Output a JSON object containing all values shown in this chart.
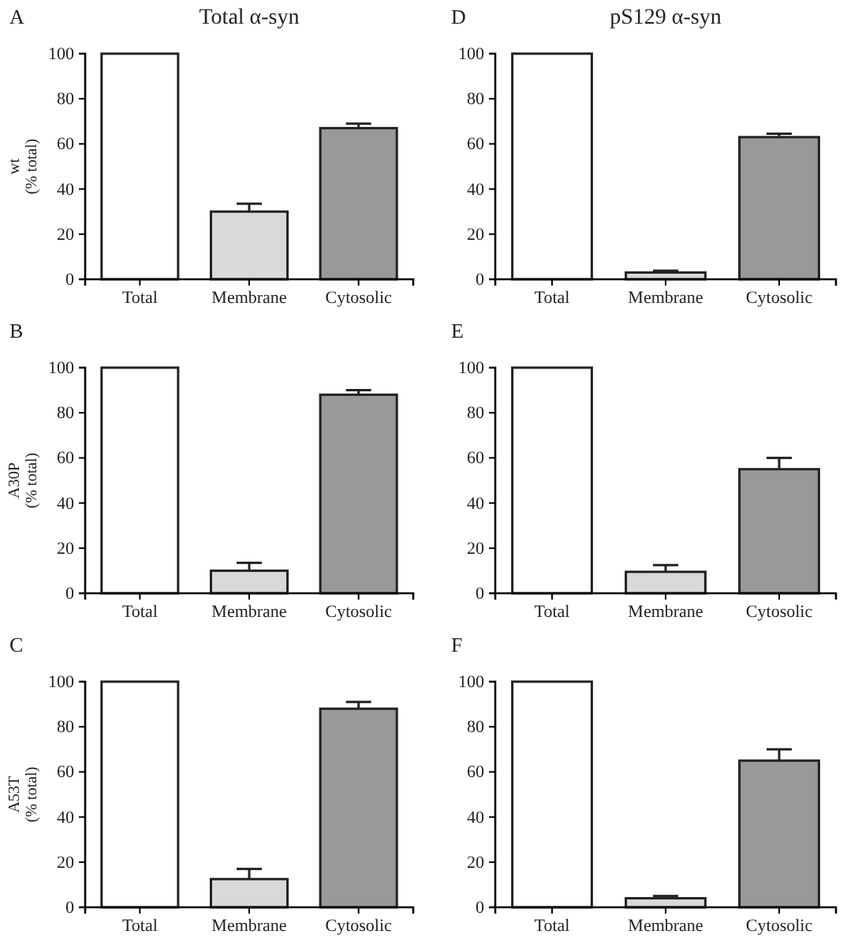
{
  "chart_data": [
    {
      "type": "bar",
      "title": "Total α-syn",
      "ylabel": "wt\n(% total)",
      "annotations": [
        "A"
      ],
      "categories": [
        "Total",
        "Membrane",
        "Cytosolic"
      ],
      "values": [
        100,
        30,
        67
      ],
      "errors": [
        null,
        3.5,
        2
      ],
      "colors": [
        "#ffffff",
        "#d9d9d9",
        "#999999"
      ],
      "ylim": [
        0,
        100
      ],
      "yticks": [
        0,
        20,
        40,
        60,
        80,
        100
      ],
      "grid": false
    },
    {
      "type": "bar",
      "title": "pS129 α-syn",
      "annotations": [
        "D"
      ],
      "categories": [
        "Total",
        "Membrane",
        "Cytosolic"
      ],
      "values": [
        100,
        3,
        63
      ],
      "errors": [
        null,
        0.8,
        1.5
      ],
      "colors": [
        "#ffffff",
        "#d9d9d9",
        "#999999"
      ],
      "ylim": [
        0,
        100
      ],
      "yticks": [
        0,
        20,
        40,
        60,
        80,
        100
      ],
      "grid": false
    },
    {
      "type": "bar",
      "ylabel": "A30P\n(% total)",
      "annotations": [
        "B"
      ],
      "categories": [
        "Total",
        "Membrane",
        "Cytosolic"
      ],
      "values": [
        100,
        10,
        88
      ],
      "errors": [
        null,
        3.5,
        2
      ],
      "colors": [
        "#ffffff",
        "#d9d9d9",
        "#999999"
      ],
      "ylim": [
        0,
        100
      ],
      "yticks": [
        0,
        20,
        40,
        60,
        80,
        100
      ],
      "grid": false
    },
    {
      "type": "bar",
      "annotations": [
        "E"
      ],
      "categories": [
        "Total",
        "Membrane",
        "Cytosolic"
      ],
      "values": [
        100,
        9.5,
        55
      ],
      "errors": [
        null,
        3,
        5
      ],
      "colors": [
        "#ffffff",
        "#d9d9d9",
        "#999999"
      ],
      "ylim": [
        0,
        100
      ],
      "yticks": [
        0,
        20,
        40,
        60,
        80,
        100
      ],
      "grid": false
    },
    {
      "type": "bar",
      "ylabel": "A53T\n(% total)",
      "annotations": [
        "C"
      ],
      "categories": [
        "Total",
        "Membrane",
        "Cytosolic"
      ],
      "values": [
        100,
        12.5,
        88
      ],
      "errors": [
        null,
        4.5,
        3
      ],
      "colors": [
        "#ffffff",
        "#d9d9d9",
        "#999999"
      ],
      "ylim": [
        0,
        100
      ],
      "yticks": [
        0,
        20,
        40,
        60,
        80,
        100
      ],
      "grid": false
    },
    {
      "type": "bar",
      "annotations": [
        "F"
      ],
      "categories": [
        "Total",
        "Membrane",
        "Cytosolic"
      ],
      "values": [
        100,
        4,
        65
      ],
      "errors": [
        null,
        1,
        5
      ],
      "colors": [
        "#ffffff",
        "#d9d9d9",
        "#999999"
      ],
      "ylim": [
        0,
        100
      ],
      "yticks": [
        0,
        20,
        40,
        60,
        80,
        100
      ],
      "grid": false
    }
  ]
}
